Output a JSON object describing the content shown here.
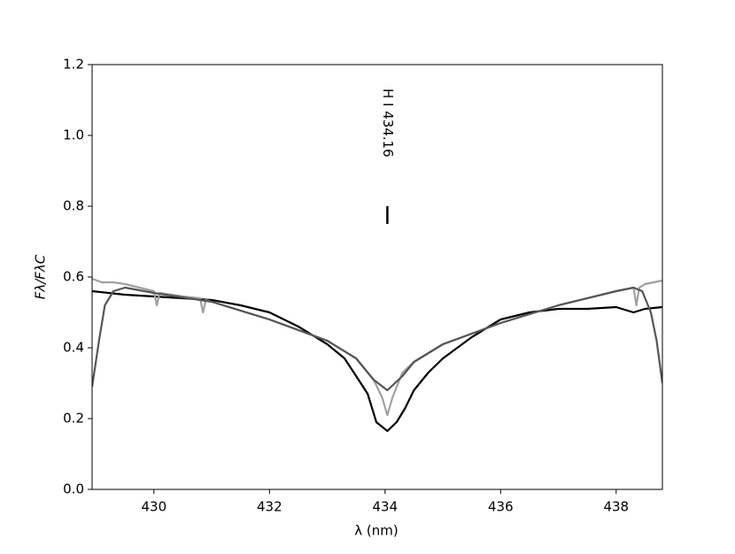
{
  "chart_data": {
    "type": "line",
    "xlabel": "λ (nm)",
    "ylabel": "Fλ/FλC",
    "xlim": [
      428.93,
      438.8
    ],
    "ylim": [
      0,
      1.2
    ],
    "xticks": [
      430,
      432,
      434,
      436,
      438
    ],
    "yticks": [
      {
        "value": 0,
        "label": "0.0"
      },
      0.2,
      0.4,
      0.6,
      0.8,
      {
        "value": 1,
        "label": "1.0"
      },
      1.2
    ],
    "grid": false,
    "series": [
      {
        "color": "#000000",
        "x": [
          428.93,
          429.5,
          430,
          430.5,
          431,
          431.5,
          432,
          432.5,
          433,
          433.3,
          433.5,
          433.7,
          433.85,
          434.04,
          434.2,
          434.35,
          434.5,
          434.75,
          435,
          435.5,
          436,
          436.5,
          437,
          437.5,
          438,
          438.3,
          438.5,
          438.8
        ],
        "values": [
          0.56,
          0.55,
          0.545,
          0.54,
          0.535,
          0.52,
          0.5,
          0.46,
          0.41,
          0.37,
          0.32,
          0.27,
          0.19,
          0.165,
          0.19,
          0.23,
          0.28,
          0.33,
          0.37,
          0.43,
          0.48,
          0.5,
          0.51,
          0.51,
          0.515,
          0.5,
          0.51,
          0.515
        ]
      },
      {
        "color": "#a0a0a0",
        "x": [
          428.93,
          429.1,
          429.3,
          429.5,
          430,
          430.05,
          430.1,
          430.5,
          430.8,
          430.85,
          430.9,
          431,
          432,
          433,
          433.5,
          433.8,
          433.95,
          434.04,
          434.13,
          434.3,
          434.5,
          435,
          436,
          437,
          438,
          438.3,
          438.35,
          438.4,
          438.5,
          438.8
        ],
        "values": [
          0.595,
          0.585,
          0.585,
          0.58,
          0.56,
          0.52,
          0.555,
          0.545,
          0.54,
          0.5,
          0.535,
          0.53,
          0.48,
          0.42,
          0.37,
          0.31,
          0.26,
          0.21,
          0.26,
          0.33,
          0.36,
          0.41,
          0.47,
          0.52,
          0.56,
          0.57,
          0.52,
          0.57,
          0.58,
          0.59
        ]
      },
      {
        "color": "#555555",
        "x": [
          428.93,
          429.05,
          429.15,
          429.3,
          429.5,
          430,
          431,
          432,
          433,
          433.5,
          433.8,
          434.04,
          434.3,
          434.5,
          435,
          436,
          437,
          438,
          438.3,
          438.45,
          438.6,
          438.7,
          438.8
        ],
        "values": [
          0.29,
          0.42,
          0.52,
          0.56,
          0.57,
          0.555,
          0.53,
          0.48,
          0.42,
          0.37,
          0.31,
          0.28,
          0.32,
          0.36,
          0.41,
          0.47,
          0.52,
          0.56,
          0.57,
          0.56,
          0.5,
          0.42,
          0.3
        ]
      }
    ],
    "annotations": [
      {
        "text": "H I 434.16",
        "x": 434.04,
        "y": [
          0.75,
          0.8
        ]
      }
    ]
  }
}
